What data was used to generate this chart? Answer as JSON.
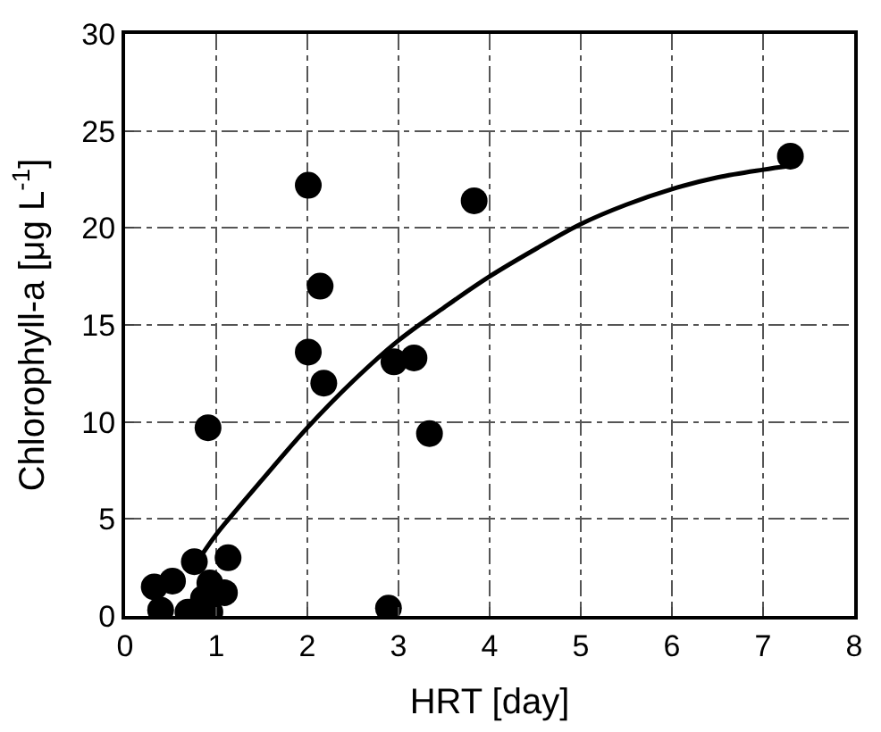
{
  "chart_data": {
    "type": "scatter",
    "xlabel": "HRT [day]",
    "ylabel": "Chlorophyll-a [μg L$^{-1}$]",
    "xlim": [
      0,
      8
    ],
    "ylim": [
      0,
      30
    ],
    "xticks": [
      0,
      1,
      2,
      3,
      4,
      5,
      6,
      7,
      8
    ],
    "yticks": [
      0,
      5,
      10,
      15,
      20,
      25,
      30
    ],
    "grid": true,
    "marker": "circle",
    "series": [
      {
        "color": "#000000",
        "x": [
          2.01,
          3.83,
          2.14,
          2.01,
          2.18,
          2.95,
          3.17,
          3.34,
          0.91,
          2.89,
          7.3,
          0.32,
          0.52,
          0.39,
          0.76,
          1.13,
          1.09,
          0.93,
          0.69,
          0.93,
          0.86
        ],
        "values": [
          22.2,
          21.4,
          17.0,
          13.6,
          12.0,
          13.1,
          13.3,
          9.4,
          9.7,
          0.4,
          23.7,
          1.5,
          1.8,
          0.3,
          2.8,
          3.0,
          1.2,
          1.7,
          0.2,
          0.2,
          0.9
        ]
      },
      {
        "type": "line",
        "color": "#000000",
        "marker": "none",
        "x": [
          0.85,
          1.0,
          1.5,
          2.0,
          2.5,
          3.0,
          3.5,
          4.0,
          4.5,
          5.0,
          5.5,
          6.0,
          6.5,
          7.0,
          7.3
        ],
        "values": [
          3.2,
          4.2,
          7.0,
          9.7,
          12.1,
          14.2,
          15.9,
          17.5,
          18.9,
          20.2,
          21.2,
          22.0,
          22.6,
          23.0,
          23.2
        ]
      }
    ]
  }
}
